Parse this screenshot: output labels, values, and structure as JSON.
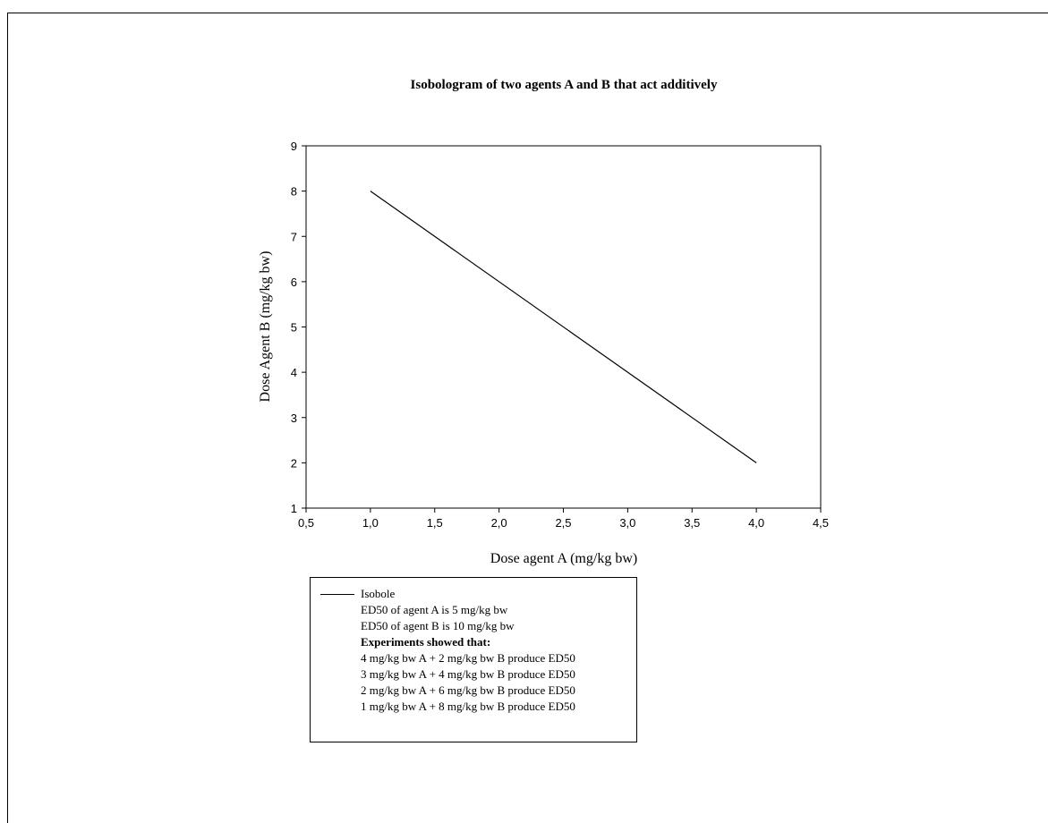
{
  "chart_data": {
    "type": "line",
    "title": "Isobologram of two agents A and B that act additively",
    "xlabel": "Dose agent A (mg/kg bw)",
    "ylabel": "Dose Agent B  (mg/kg bw)",
    "xlim": [
      0.5,
      4.5
    ],
    "ylim": [
      1,
      9
    ],
    "x_ticks": [
      "0,5",
      "1,0",
      "1,5",
      "2,0",
      "2,5",
      "3,0",
      "3,5",
      "4,0",
      "4,5"
    ],
    "y_ticks": [
      "1",
      "2",
      "3",
      "4",
      "5",
      "6",
      "7",
      "8",
      "9"
    ],
    "grid": false,
    "series": [
      {
        "name": "Isobole",
        "x": [
          1.0,
          4.0
        ],
        "y": [
          8,
          2
        ],
        "color": "#000000"
      }
    ],
    "legend": {
      "placement": "bottom",
      "items": [
        "Isobole",
        "ED50 of agent A is 5 mg/kg bw",
        "ED50 of agent B is 10 mg/kg bw",
        "Experiments showed that:",
        "4 mg/kg bw A + 2 mg/kg bw B produce ED50",
        "3 mg/kg bw A + 4 mg/kg bw B produce ED50",
        "2 mg/kg bw A + 6 mg/kg bw B produce ED50",
        "1 mg/kg bw A + 8 mg/kg bw B produce ED50"
      ]
    }
  }
}
